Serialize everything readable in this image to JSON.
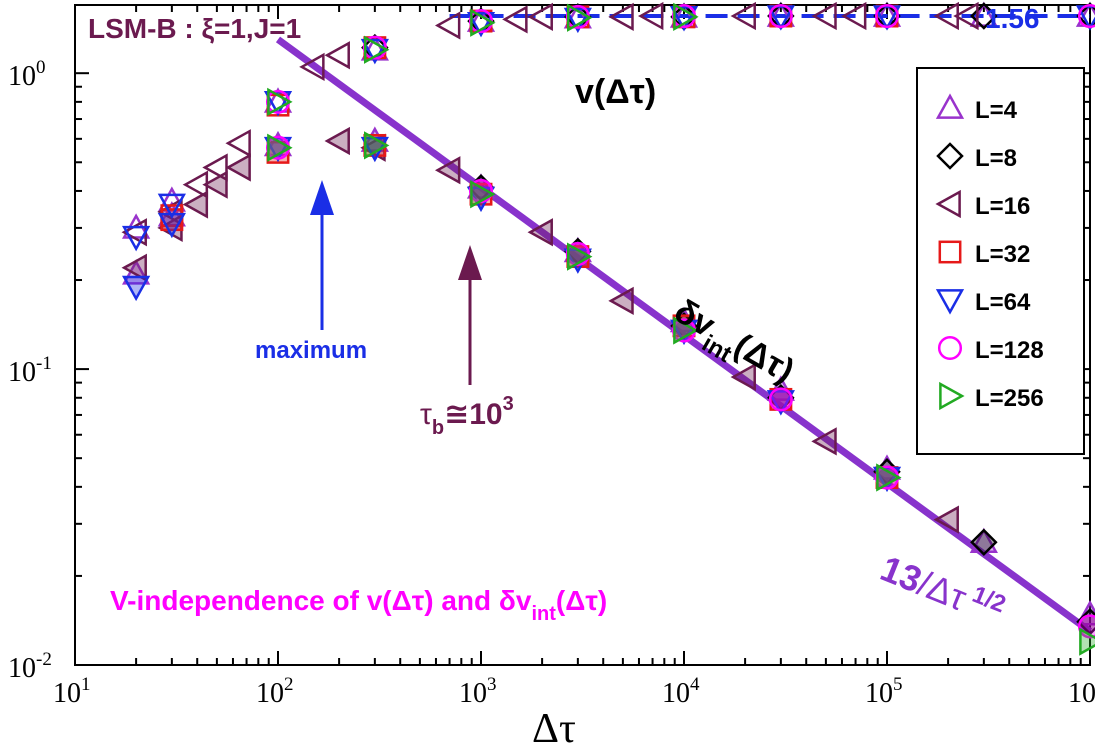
{
  "chart_data": {
    "type": "scatter",
    "title": "LSM-B : ξ=1,J=1",
    "xlabel": "Δτ",
    "ylabel": "",
    "xscale": "log",
    "yscale": "log",
    "xlim": [
      10,
      1000000
    ],
    "ylim": [
      0.01,
      1.7
    ],
    "x_ticks": [
      {
        "base": "10",
        "exp": "1"
      },
      {
        "base": "10",
        "exp": "2"
      },
      {
        "base": "10",
        "exp": "3"
      },
      {
        "base": "10",
        "exp": "4"
      },
      {
        "base": "10",
        "exp": "5"
      },
      {
        "base": "10",
        "exp": "6"
      }
    ],
    "y_ticks": [
      {
        "base": "10",
        "exp": "0"
      },
      {
        "base": "10",
        "exp": "-1"
      },
      {
        "base": "10",
        "exp": "-2"
      }
    ],
    "grid": false,
    "legend_position": "right",
    "series": [
      {
        "name": "L=4",
        "marker": "triangle-up",
        "color": "#9933cc",
        "v": [
          [
            20,
            0.3
          ],
          [
            30,
            0.37
          ],
          [
            100,
            0.8
          ],
          [
            300,
            1.2
          ],
          [
            1000,
            1.5
          ],
          [
            3000,
            1.54
          ],
          [
            10000,
            1.55
          ],
          [
            30000,
            1.56
          ],
          [
            100000,
            1.56
          ],
          [
            300000,
            1.56
          ],
          [
            1000000,
            1.56
          ]
        ],
        "dv": [
          [
            20,
            0.21
          ],
          [
            30,
            0.33
          ],
          [
            100,
            0.57
          ],
          [
            300,
            0.59
          ],
          [
            1000,
            0.41
          ],
          [
            3000,
            0.25
          ],
          [
            10000,
            0.145
          ],
          [
            30000,
            0.085
          ],
          [
            100000,
            0.046
          ],
          [
            300000,
            0.026
          ],
          [
            1000000,
            0.0148
          ]
        ]
      },
      {
        "name": "L=8",
        "marker": "diamond",
        "color": "#000000",
        "v": [
          [
            300,
            1.22
          ],
          [
            1000,
            1.5
          ],
          [
            3000,
            1.55
          ],
          [
            10000,
            1.55
          ],
          [
            30000,
            1.56
          ],
          [
            100000,
            1.56
          ],
          [
            300000,
            1.56
          ],
          [
            1000000,
            1.56
          ]
        ],
        "dv": [
          [
            1000,
            0.41
          ],
          [
            3000,
            0.25
          ],
          [
            10000,
            0.14
          ],
          [
            30000,
            0.08
          ],
          [
            100000,
            0.045
          ],
          [
            300000,
            0.026
          ],
          [
            1000000,
            0.014
          ]
        ]
      },
      {
        "name": "L=16",
        "marker": "triangle-left",
        "color": "#6b1a4f",
        "v": [
          [
            20,
            0.29
          ],
          [
            30,
            0.34
          ],
          [
            40,
            0.42
          ],
          [
            50,
            0.48
          ],
          [
            65,
            0.58
          ],
          [
            150,
            1.05
          ],
          [
            200,
            1.15
          ],
          [
            700,
            1.45
          ],
          [
            1500,
            1.52
          ],
          [
            2000,
            1.55
          ],
          [
            5000,
            1.55
          ],
          [
            7000,
            1.56
          ],
          [
            20000,
            1.56
          ],
          [
            50000,
            1.56
          ],
          [
            70000,
            1.56
          ],
          [
            200000,
            1.56
          ],
          [
            250000,
            1.56
          ]
        ],
        "dv": [
          [
            20,
            0.22
          ],
          [
            30,
            0.3
          ],
          [
            40,
            0.36
          ],
          [
            50,
            0.42
          ],
          [
            65,
            0.48
          ],
          [
            200,
            0.59
          ],
          [
            300,
            0.56
          ],
          [
            700,
            0.47
          ],
          [
            2000,
            0.29
          ],
          [
            5000,
            0.17
          ],
          [
            20000,
            0.094
          ],
          [
            50000,
            0.057
          ],
          [
            200000,
            0.031
          ]
        ]
      },
      {
        "name": "L=32",
        "marker": "square",
        "color": "#e61919",
        "v": [
          [
            30,
            0.33
          ],
          [
            100,
            0.78
          ],
          [
            300,
            1.22
          ],
          [
            1000,
            1.5
          ],
          [
            3000,
            1.55
          ],
          [
            10000,
            1.55
          ],
          [
            30000,
            1.56
          ],
          [
            100000,
            1.56
          ]
        ],
        "dv": [
          [
            30,
            0.32
          ],
          [
            100,
            0.54
          ],
          [
            300,
            0.57
          ],
          [
            1000,
            0.39
          ],
          [
            3000,
            0.24
          ],
          [
            10000,
            0.14
          ],
          [
            30000,
            0.079
          ],
          [
            100000,
            0.043
          ]
        ]
      },
      {
        "name": "L=64",
        "marker": "triangle-down",
        "color": "#1a2ee6",
        "v": [
          [
            20,
            0.28
          ],
          [
            30,
            0.36
          ],
          [
            100,
            0.8
          ],
          [
            300,
            1.2
          ],
          [
            1000,
            1.48
          ],
          [
            3000,
            1.53
          ],
          [
            10000,
            1.55
          ],
          [
            30000,
            1.56
          ],
          [
            100000,
            1.56
          ],
          [
            1000000,
            1.56
          ]
        ],
        "dv": [
          [
            20,
            0.19
          ],
          [
            30,
            0.31
          ],
          [
            100,
            0.56
          ],
          [
            300,
            0.56
          ],
          [
            1000,
            0.38
          ],
          [
            3000,
            0.235
          ],
          [
            10000,
            0.135
          ],
          [
            30000,
            0.078
          ],
          [
            100000,
            0.043
          ]
        ]
      },
      {
        "name": "L=128",
        "marker": "circle",
        "color": "#ff00ff",
        "v": [
          [
            100,
            0.8
          ],
          [
            300,
            1.22
          ],
          [
            1000,
            1.5
          ],
          [
            3000,
            1.55
          ],
          [
            10000,
            1.56
          ],
          [
            30000,
            1.56
          ],
          [
            100000,
            1.56
          ],
          [
            1000000,
            1.56
          ]
        ],
        "dv": [
          [
            100,
            0.56
          ],
          [
            1000,
            0.4
          ],
          [
            3000,
            0.245
          ],
          [
            10000,
            0.135
          ],
          [
            30000,
            0.079
          ],
          [
            100000,
            0.043
          ],
          [
            1000000,
            0.0135
          ]
        ]
      },
      {
        "name": "L=256",
        "marker": "triangle-right",
        "color": "#22aa22",
        "v": [
          [
            100,
            0.8
          ],
          [
            300,
            1.2
          ],
          [
            1000,
            1.48
          ],
          [
            3000,
            1.54
          ],
          [
            10000,
            1.55
          ]
        ],
        "dv": [
          [
            100,
            0.56
          ],
          [
            300,
            0.57
          ],
          [
            1000,
            0.39
          ],
          [
            3000,
            0.24
          ],
          [
            10000,
            0.135
          ],
          [
            100000,
            0.043
          ],
          [
            1000000,
            0.012
          ]
        ]
      }
    ],
    "fit_line": {
      "label_num": "13",
      "label_den": "Δτ",
      "label_exp": "1/2",
      "coef": 13,
      "power": -0.5,
      "x_range": [
        100,
        1000000
      ],
      "color": "#8833cc"
    },
    "plateau_line": {
      "label": "1.56",
      "value": 1.56,
      "x_range": [
        700,
        1000000
      ],
      "color": "#1a2ee6"
    },
    "annotations": {
      "v_label": "v(Δτ)",
      "dv_label_main": "δv",
      "dv_label_sub": "int",
      "dv_label_tail": "(Δτ)",
      "maximum": "maximum",
      "tau_b_base": "τ",
      "tau_b_sub": "b",
      "tau_b_mid": "≅10",
      "tau_b_exp": "3",
      "v_indep_a": "V-independence of v(Δτ) and δv",
      "v_indep_sub": "int",
      "v_indep_b": "(Δτ)",
      "colors": {
        "title": "#6b1a4f",
        "maximum": "#1a2ee6",
        "tau_b": "#6b1a4f",
        "v_indep": "#ff00ff",
        "labels": "#000000"
      }
    }
  }
}
